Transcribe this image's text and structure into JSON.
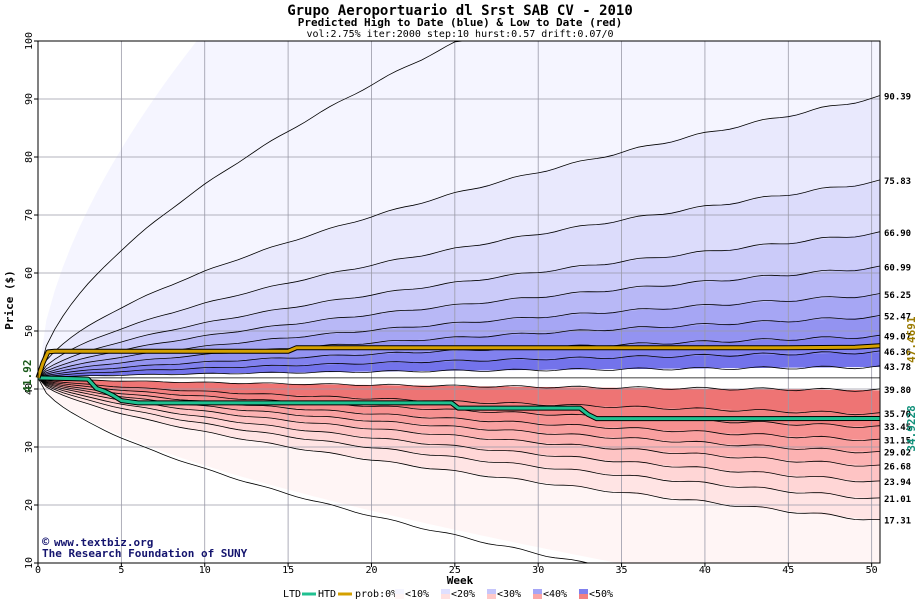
{
  "chart_data": {
    "type": "area",
    "title": "Grupo Aeroportuario dl Srst SAB CV  - 2010",
    "subtitle": "Predicted High to Date (blue) &  Low to Date (red)",
    "params": "vol:2.75% iter:2000 step:10 hurst:0.57 drift:0.07/0",
    "xlabel": "Week",
    "ylabel": "Price ($)",
    "xlim": [
      0,
      50.5
    ],
    "ylim": [
      10,
      100
    ],
    "grid": true,
    "x_ticks": [
      "0",
      "5",
      "10",
      "15",
      "20",
      "25",
      "30",
      "35",
      "40",
      "45",
      "50"
    ],
    "y_ticks": [
      "10",
      "20",
      "30",
      "40",
      "50",
      "60",
      "70",
      "80",
      "90",
      "100"
    ],
    "start_price": 41.92,
    "start_label": "41.92",
    "high_percentile_curves": [
      {
        "end": 90.39,
        "label": "90.39"
      },
      {
        "end": 75.83,
        "label": "75.83"
      },
      {
        "end": 66.9,
        "label": "66.90"
      },
      {
        "end": 60.99,
        "label": "60.99"
      },
      {
        "end": 56.25,
        "label": "56.25"
      },
      {
        "end": 52.47,
        "label": "52.47"
      },
      {
        "end": 49.07,
        "label": "49.07"
      },
      {
        "end": 46.36,
        "label": "46.36"
      },
      {
        "end": 43.78,
        "label": "43.78"
      }
    ],
    "low_percentile_curves": [
      {
        "end": 39.8,
        "label": "39.80"
      },
      {
        "end": 35.7,
        "label": "35.70"
      },
      {
        "end": 33.45,
        "label": "33.45"
      },
      {
        "end": 31.15,
        "label": "31.15"
      },
      {
        "end": 29.02,
        "label": "29.02"
      },
      {
        "end": 26.68,
        "label": "26.68"
      },
      {
        "end": 23.94,
        "label": "23.94"
      },
      {
        "end": 21.01,
        "label": "21.01"
      },
      {
        "end": 17.31,
        "label": "17.31"
      }
    ],
    "htd_series": {
      "name": "HTD",
      "end_label": "47.4691",
      "color": "#d4a000",
      "points": [
        [
          0,
          41.92
        ],
        [
          0.3,
          44.5
        ],
        [
          0.6,
          46.4
        ],
        [
          1,
          46.5
        ],
        [
          2,
          46.5
        ],
        [
          5,
          46.5
        ],
        [
          10,
          46.5
        ],
        [
          15,
          46.5
        ],
        [
          15.5,
          47.1
        ],
        [
          20,
          47.1
        ],
        [
          25,
          47.1
        ],
        [
          30,
          47.1
        ],
        [
          35,
          47.1
        ],
        [
          40,
          47.1
        ],
        [
          45,
          47.1
        ],
        [
          49,
          47.2
        ],
        [
          50.5,
          47.47
        ]
      ]
    },
    "ltd_series": {
      "name": "LTD",
      "end_label": "34.9228",
      "color": "#20c090",
      "points": [
        [
          0,
          41.92
        ],
        [
          2,
          41.8
        ],
        [
          3,
          41.7
        ],
        [
          3.5,
          40.1
        ],
        [
          4,
          39.6
        ],
        [
          4.5,
          38.9
        ],
        [
          5,
          38.0
        ],
        [
          6,
          37.6
        ],
        [
          10,
          37.6
        ],
        [
          15,
          37.6
        ],
        [
          20,
          37.6
        ],
        [
          24.8,
          37.6
        ],
        [
          25.2,
          36.7
        ],
        [
          30,
          36.7
        ],
        [
          32.5,
          36.7
        ],
        [
          33,
          35.6
        ],
        [
          33.5,
          34.9
        ],
        [
          40,
          34.9
        ],
        [
          50.5,
          34.92
        ]
      ]
    },
    "legend": {
      "ltd_label": "LTD",
      "htd_label": "HTD",
      "prob_label": "prob:0%",
      "items": [
        {
          "label": "<10%",
          "high_color": "#f5f5ff",
          "low_color": "#fff5f5"
        },
        {
          "label": "<20%",
          "high_color": "#e0e0ff",
          "low_color": "#ffe0e0"
        },
        {
          "label": "<30%",
          "high_color": "#c6c6fb",
          "low_color": "#ffc8c8"
        },
        {
          "label": "<40%",
          "high_color": "#a5a5f6",
          "low_color": "#fba6a6"
        },
        {
          "label": "<50%",
          "high_color": "#8080ee",
          "low_color": "#f48080"
        }
      ]
    },
    "credit_url": "www.textbiz.org",
    "credit_org": "The Research Foundation of SUNY"
  }
}
